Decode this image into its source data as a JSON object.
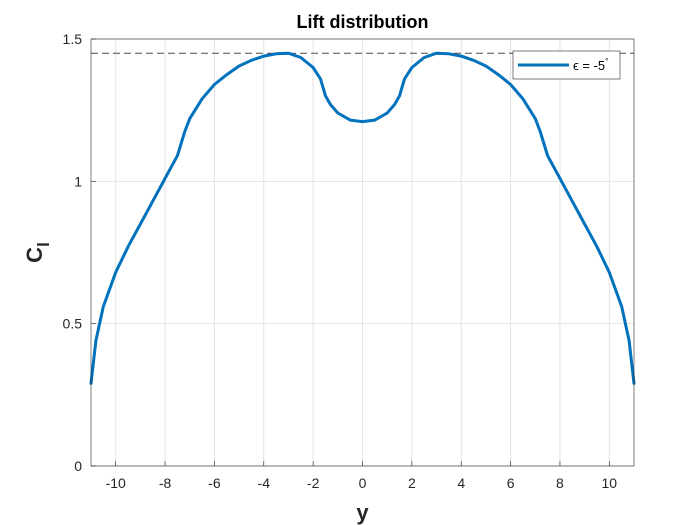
{
  "chart_data": {
    "type": "line",
    "title": "Lift distribution",
    "xlabel": "y",
    "ylabel": "C",
    "ylabel_subscript": "l",
    "xlim": [
      -11,
      11
    ],
    "ylim": [
      0,
      1.5
    ],
    "xticks": [
      -10,
      -8,
      -6,
      -4,
      -2,
      0,
      2,
      4,
      6,
      8,
      10
    ],
    "yticks": [
      0,
      0.5,
      1,
      1.5
    ],
    "grid": true,
    "legend_position": "top-right",
    "reference_line": {
      "y": 1.45,
      "style": "dashed",
      "color": "#4d4d4d"
    },
    "series": [
      {
        "name": "ϵ = -5°",
        "legend_label": "ϵ = -5",
        "legend_degree": "°",
        "color": "#0072bd",
        "x": [
          -11.0,
          -10.8,
          -10.5,
          -10.0,
          -9.5,
          -9.0,
          -8.5,
          -8.0,
          -7.5,
          -7.2,
          -7.0,
          -6.5,
          -6.0,
          -5.5,
          -5.0,
          -4.5,
          -4.0,
          -3.5,
          -3.0,
          -2.5,
          -2.0,
          -1.7,
          -1.5,
          -1.3,
          -1.0,
          -0.5,
          0.0,
          0.5,
          1.0,
          1.3,
          1.5,
          1.7,
          2.0,
          2.5,
          3.0,
          3.5,
          4.0,
          4.5,
          5.0,
          5.5,
          6.0,
          6.5,
          7.0,
          7.2,
          7.5,
          8.0,
          8.5,
          9.0,
          9.5,
          10.0,
          10.5,
          10.8,
          11.0
        ],
        "y": [
          0.29,
          0.44,
          0.56,
          0.68,
          0.77,
          0.85,
          0.93,
          1.01,
          1.09,
          1.175,
          1.22,
          1.29,
          1.34,
          1.375,
          1.405,
          1.425,
          1.44,
          1.448,
          1.45,
          1.435,
          1.4,
          1.36,
          1.3,
          1.27,
          1.24,
          1.215,
          1.21,
          1.215,
          1.24,
          1.27,
          1.3,
          1.36,
          1.4,
          1.435,
          1.45,
          1.448,
          1.44,
          1.425,
          1.405,
          1.375,
          1.34,
          1.29,
          1.22,
          1.175,
          1.09,
          1.01,
          0.93,
          0.85,
          0.77,
          0.68,
          0.56,
          0.44,
          0.29
        ]
      }
    ]
  }
}
